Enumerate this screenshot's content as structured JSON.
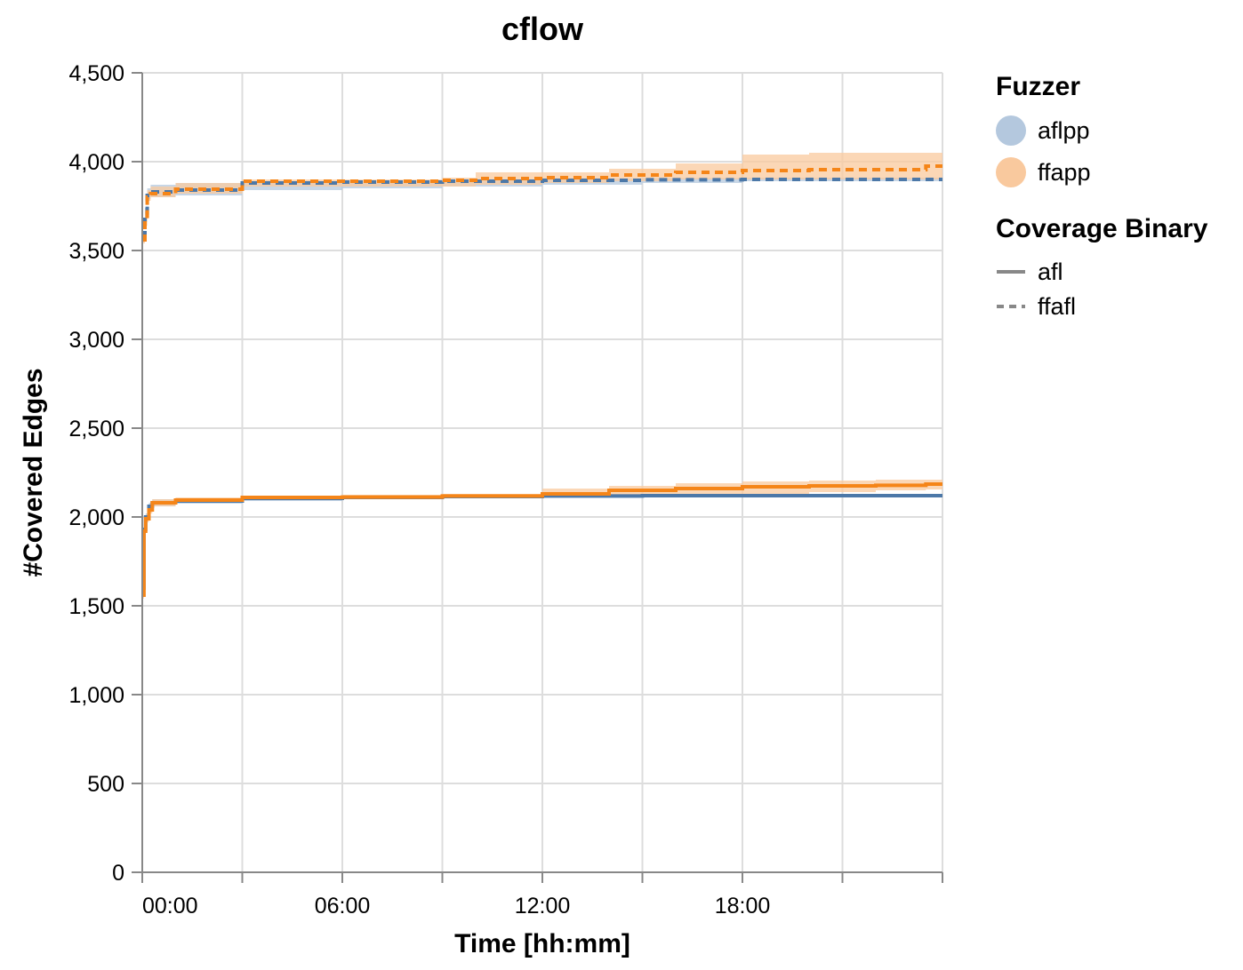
{
  "chart_data": {
    "type": "line",
    "title": "cflow",
    "xlabel": "Time [hh:mm]",
    "ylabel": "#Covered Edges",
    "x_unit": "hours",
    "xlim": [
      0,
      24
    ],
    "ylim": [
      0,
      4500
    ],
    "x_ticks": [
      "00:00",
      "06:00",
      "12:00",
      "18:00"
    ],
    "y_ticks": [
      "0",
      "500",
      "1,000",
      "1,500",
      "2,000",
      "2,500",
      "3,000",
      "3,500",
      "4,000",
      "4,500"
    ],
    "grid": true,
    "legend_placement": "right",
    "legends": [
      {
        "title": "Fuzzer",
        "entries": [
          {
            "label": "aflpp",
            "color": "#b4c8de"
          },
          {
            "label": "ffapp",
            "color": "#f9c99e"
          }
        ]
      },
      {
        "title": "Coverage Binary",
        "entries": [
          {
            "label": "afl",
            "dash": "solid"
          },
          {
            "label": "ffafl",
            "dash": "dashed"
          }
        ]
      }
    ],
    "series": [
      {
        "fuzzer": "aflpp",
        "binary": "ffafl",
        "color": "#4c78a8",
        "dash": "dashed",
        "x": [
          0,
          0.08,
          0.15,
          0.25,
          1,
          3,
          6,
          9,
          12,
          15,
          18,
          21,
          24
        ],
        "y": [
          3580,
          3700,
          3810,
          3830,
          3840,
          3880,
          3885,
          3890,
          3895,
          3898,
          3900,
          3900,
          3900
        ],
        "band_low": [
          3560,
          3660,
          3790,
          3800,
          3810,
          3840,
          3850,
          3860,
          3870,
          3880,
          3890,
          3890,
          3890
        ],
        "band_high": [
          3600,
          3740,
          3850,
          3870,
          3880,
          3890,
          3895,
          3900,
          3905,
          3908,
          3910,
          3910,
          3910
        ]
      },
      {
        "fuzzer": "ffapp",
        "binary": "ffafl",
        "color": "#f58518",
        "dash": "dashed",
        "x": [
          0,
          0.08,
          0.15,
          0.25,
          1,
          3,
          6,
          9,
          10,
          12,
          14,
          16,
          18,
          20,
          22,
          23.5,
          24
        ],
        "y": [
          3560,
          3680,
          3800,
          3820,
          3845,
          3890,
          3890,
          3895,
          3905,
          3910,
          3925,
          3940,
          3950,
          3955,
          3955,
          3975,
          3975
        ],
        "band_low": [
          3540,
          3640,
          3780,
          3800,
          3820,
          3860,
          3860,
          3860,
          3870,
          3880,
          3890,
          3900,
          3900,
          3900,
          3900,
          3900,
          3900
        ],
        "band_high": [
          3580,
          3720,
          3840,
          3860,
          3880,
          3900,
          3900,
          3910,
          3940,
          3940,
          3960,
          3990,
          4040,
          4050,
          4050,
          4050,
          4050
        ]
      },
      {
        "fuzzer": "aflpp",
        "binary": "afl",
        "color": "#4c78a8",
        "dash": "solid",
        "x": [
          0,
          0.05,
          0.1,
          0.2,
          0.3,
          1,
          3,
          6,
          9,
          12,
          15,
          18,
          21,
          24
        ],
        "y": [
          1600,
          1930,
          2000,
          2060,
          2080,
          2090,
          2105,
          2110,
          2115,
          2118,
          2120,
          2120,
          2120,
          2120
        ],
        "band_low": [
          1580,
          1900,
          1980,
          2040,
          2060,
          2075,
          2090,
          2100,
          2105,
          2108,
          2110,
          2110,
          2110,
          2110
        ],
        "band_high": [
          1620,
          1960,
          2020,
          2080,
          2100,
          2105,
          2115,
          2120,
          2125,
          2128,
          2130,
          2130,
          2130,
          2130
        ]
      },
      {
        "fuzzer": "ffapp",
        "binary": "afl",
        "color": "#f58518",
        "dash": "solid",
        "x": [
          0,
          0.05,
          0.1,
          0.2,
          0.3,
          1,
          3,
          6,
          9,
          12,
          14,
          16,
          18,
          20,
          22,
          23.5,
          24
        ],
        "y": [
          1560,
          1920,
          1990,
          2040,
          2080,
          2095,
          2110,
          2112,
          2118,
          2130,
          2150,
          2160,
          2170,
          2175,
          2178,
          2185,
          2185
        ],
        "band_low": [
          1540,
          1890,
          1970,
          2020,
          2060,
          2080,
          2100,
          2105,
          2110,
          2115,
          2120,
          2125,
          2130,
          2140,
          2150,
          2155,
          2155
        ],
        "band_high": [
          1580,
          1950,
          2010,
          2060,
          2100,
          2110,
          2120,
          2125,
          2130,
          2160,
          2175,
          2190,
          2200,
          2205,
          2210,
          2210,
          2210
        ]
      }
    ]
  }
}
